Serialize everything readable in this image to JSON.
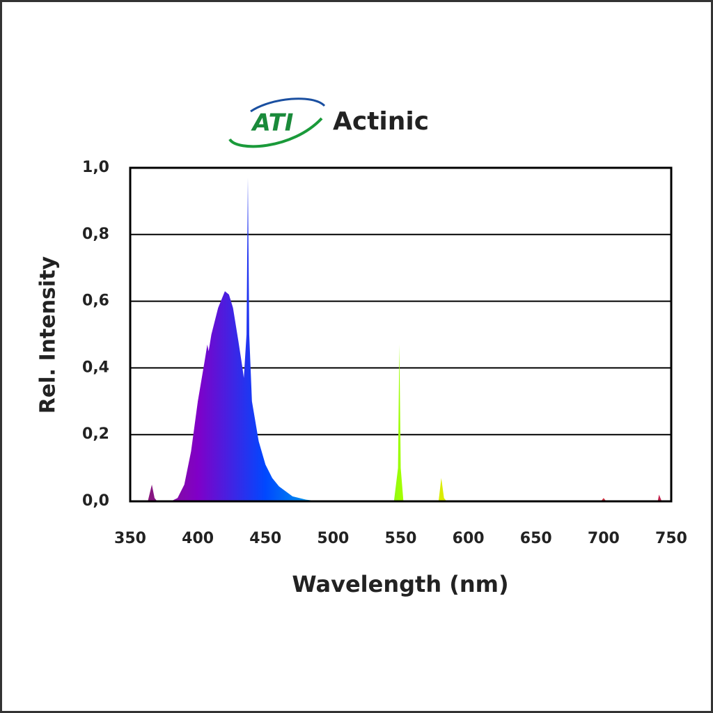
{
  "chart_data": {
    "type": "area",
    "logo": "ATI",
    "title": "Actinic",
    "x_label": "Wavelength (nm)",
    "y_label": "Rel. Intensity",
    "xlim": [
      350,
      750
    ],
    "xticks": [
      350,
      400,
      450,
      500,
      550,
      600,
      650,
      700,
      750
    ],
    "ylim": [
      0,
      1
    ],
    "yticks": [
      {
        "value": 0,
        "label": "0,0"
      },
      {
        "value": 0.2,
        "label": "0,2"
      },
      {
        "value": 0.4,
        "label": "0,4"
      },
      {
        "value": 0.6,
        "label": "0,6"
      },
      {
        "value": 0.8,
        "label": "0,8"
      },
      {
        "value": 1,
        "label": "1,0"
      }
    ],
    "grid": true,
    "colors": [
      "#8a2060",
      "#8000c8",
      "#0048ff",
      "#00c0e0",
      "#a0ff00",
      "#ffe000",
      "#ff8000",
      "#d03040",
      "#c02050"
    ],
    "x": [
      350,
      363,
      366,
      368,
      370,
      380,
      385,
      390,
      395,
      400,
      405,
      407,
      408,
      410,
      415,
      420,
      423,
      426,
      430,
      433,
      434,
      436,
      437,
      438,
      440,
      445,
      450,
      455,
      460,
      470,
      480,
      490,
      545,
      548,
      549,
      550,
      552,
      578,
      580,
      582,
      584,
      698,
      700,
      702,
      740,
      741,
      743,
      750
    ],
    "values": [
      0,
      0,
      0.05,
      0.01,
      0,
      0,
      0.01,
      0.05,
      0.15,
      0.3,
      0.42,
      0.47,
      0.45,
      0.5,
      0.58,
      0.63,
      0.62,
      0.58,
      0.48,
      0.4,
      0.37,
      0.5,
      0.97,
      0.5,
      0.3,
      0.18,
      0.11,
      0.07,
      0.045,
      0.015,
      0.005,
      0,
      0,
      0.1,
      0.47,
      0.1,
      0,
      0,
      0.07,
      0.01,
      0,
      0,
      0.01,
      0,
      0,
      0.02,
      0,
      0
    ]
  }
}
